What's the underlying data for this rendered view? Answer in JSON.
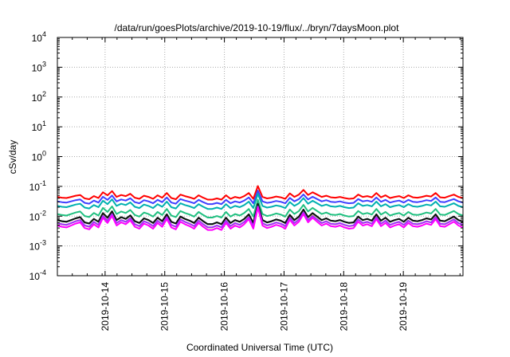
{
  "chart_data": {
    "type": "line",
    "title": "/data/run/goesPlots/archive/2019-10-19/flux/../bryn/7daysMoon.plot",
    "xlabel": "Coordinated Universal Time (UTC)",
    "ylabel": "cSv/day",
    "y_scale": "log",
    "ylim_exponents": [
      -4,
      4
    ],
    "y_ticks": [
      {
        "base": "10",
        "exp": "4"
      },
      {
        "base": "10",
        "exp": "3"
      },
      {
        "base": "10",
        "exp": "2"
      },
      {
        "base": "10",
        "exp": "1"
      },
      {
        "base": "10",
        "exp": "0"
      },
      {
        "base": "10",
        "exp": "-1"
      },
      {
        "base": "10",
        "exp": "-2"
      },
      {
        "base": "10",
        "exp": "-3"
      },
      {
        "base": "10",
        "exp": "-4"
      }
    ],
    "x_range_days": [
      -0.8,
      6.0
    ],
    "x_ticks": [
      "2019-10-14",
      "2019-10-15",
      "2019-10-16",
      "2019-10-17",
      "2019-10-18",
      "2019-10-19"
    ],
    "grid": true,
    "legend": "none",
    "base_exponents": [
      -1.4,
      -1.42,
      -1.43,
      -1.4,
      -1.37,
      -1.35,
      -1.44,
      -1.46,
      -1.38,
      -1.43,
      -1.28,
      -1.36,
      -1.25,
      -1.4,
      -1.35,
      -1.38,
      -1.32,
      -1.42,
      -1.45,
      -1.37,
      -1.4,
      -1.45,
      -1.36,
      -1.42,
      -1.3,
      -1.43,
      -1.46,
      -1.34,
      -1.38,
      -1.41,
      -1.45,
      -1.36,
      -1.42,
      -1.47,
      -1.47,
      -1.44,
      -1.47,
      -1.36,
      -1.45,
      -1.4,
      -1.43,
      -1.38,
      -1.3,
      -1.45,
      -1.12,
      -1.4,
      -1.44,
      -1.42,
      -1.39,
      -1.41,
      -1.45,
      -1.31,
      -1.4,
      -1.34,
      -1.22,
      -1.35,
      -1.28,
      -1.34,
      -1.4,
      -1.37,
      -1.41,
      -1.42,
      -1.4,
      -1.43,
      -1.45,
      -1.44,
      -1.34,
      -1.4,
      -1.38,
      -1.41,
      -1.3,
      -1.41,
      -1.36,
      -1.43,
      -1.4,
      -1.38,
      -1.43,
      -1.36,
      -1.41,
      -1.42,
      -1.4,
      -1.37,
      -1.39,
      -1.3,
      -1.41,
      -1.42,
      -1.38,
      -1.34,
      -1.4,
      -1.43
    ],
    "series": [
      {
        "color": "#ff0000",
        "offset_exp": 0.05,
        "spike_gain": 0.3
      },
      {
        "color": "#4040ff",
        "offset_exp": -0.1,
        "spike_gain": 0.3
      },
      {
        "color": "#00b0b0",
        "offset_exp": -0.25,
        "spike_gain": 0.45
      },
      {
        "color": "#20c080",
        "offset_exp": -0.52,
        "spike_gain": 0.7
      },
      {
        "color": "#007070",
        "offset_exp": -0.72,
        "spike_gain": 0.95
      },
      {
        "color": "#e8d800",
        "offset_exp": -0.82,
        "spike_gain": 1.1
      },
      {
        "color": "#101010",
        "offset_exp": -0.72,
        "spike_gain": 0.95
      },
      {
        "color": "#a030ff",
        "offset_exp": -0.82,
        "spike_gain": 1.0
      },
      {
        "color": "#ff00ff",
        "offset_exp": -0.9,
        "spike_gain": 1.15
      }
    ]
  }
}
